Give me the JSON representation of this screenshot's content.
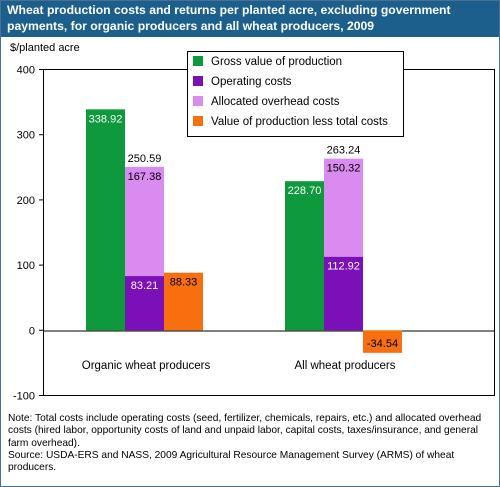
{
  "title": "Wheat production costs and returns per planted acre, excluding government payments, for organic producers and all wheat producers, 2009",
  "note": "Note: Total costs include operating costs (seed, fertilizer, chemicals, repairs, etc.) and allocated overhead costs (hired labor, opportunity costs of land and unpaid labor, capital costs, taxes/insurance, and general farm overhead).",
  "source": "Source: USDA-ERS and NASS, 2009 Agricultural Resource Management Survey (ARMS) of wheat producers.",
  "chart_data": {
    "type": "bar",
    "stacked_series": [
      "Operating costs",
      "Allocated overhead costs"
    ],
    "categories": [
      "Organic wheat producers",
      "All wheat producers"
    ],
    "ylabel": "$/planted acre",
    "ylim": [
      -100,
      400
    ],
    "yticks": [
      -100,
      0,
      100,
      200,
      300,
      400
    ],
    "grid": false,
    "legend_position": "top-center",
    "series": [
      {
        "name": "Gross value of production",
        "color": "#0e9a3c",
        "values": [
          338.92,
          228.7
        ],
        "labels": [
          "338.92",
          "228.70"
        ]
      },
      {
        "name": "Operating costs",
        "color": "#7b0fb8",
        "values": [
          83.21,
          112.92
        ],
        "labels": [
          "83.21",
          "112.92"
        ]
      },
      {
        "name": "Allocated overhead costs",
        "color": "#d98bf0",
        "values": [
          167.38,
          150.32
        ],
        "labels": [
          "167.38",
          "150.32"
        ]
      },
      {
        "name": "Value of production less total costs",
        "color": "#f86f0f",
        "values": [
          88.33,
          -34.54
        ],
        "labels": [
          "88.33",
          "-34.54"
        ]
      }
    ],
    "stack_totals": [
      "250.59",
      "263.24"
    ]
  }
}
